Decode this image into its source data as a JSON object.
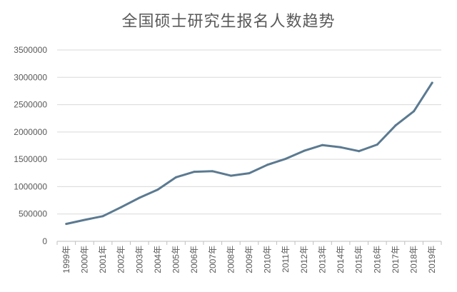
{
  "chart_data": {
    "type": "line",
    "title": "全国硕士研究生报名人数趋势",
    "xlabel": "",
    "ylabel": "",
    "ylim": [
      0,
      3500000
    ],
    "yticks": [
      "3500000",
      "3000000",
      "2500000",
      "2000000",
      "1500000",
      "1000000",
      "500000",
      "0"
    ],
    "grid": true,
    "legend": "none",
    "categories": [
      "1999年",
      "2000年",
      "2001年",
      "2002年",
      "2003年",
      "2004年",
      "2005年",
      "2006年",
      "2007年",
      "2008年",
      "2009年",
      "2010年",
      "2011年",
      "2012年",
      "2013年",
      "2014年",
      "2015年",
      "2016年",
      "2017年",
      "2018年",
      "2019年"
    ],
    "series": [
      {
        "values": [
          319000,
          392000,
          460000,
          624000,
          797000,
          945000,
          1171000,
          1272000,
          1282000,
          1200000,
          1246000,
          1400000,
          1510000,
          1656000,
          1760000,
          1720000,
          1649000,
          1770000,
          2120000,
          2380000,
          2900000
        ]
      }
    ],
    "colors": {
      "line": "#5b7a91",
      "grid": "#d9d9d9",
      "axis": "#bfbfbf",
      "text": "#595959"
    }
  }
}
